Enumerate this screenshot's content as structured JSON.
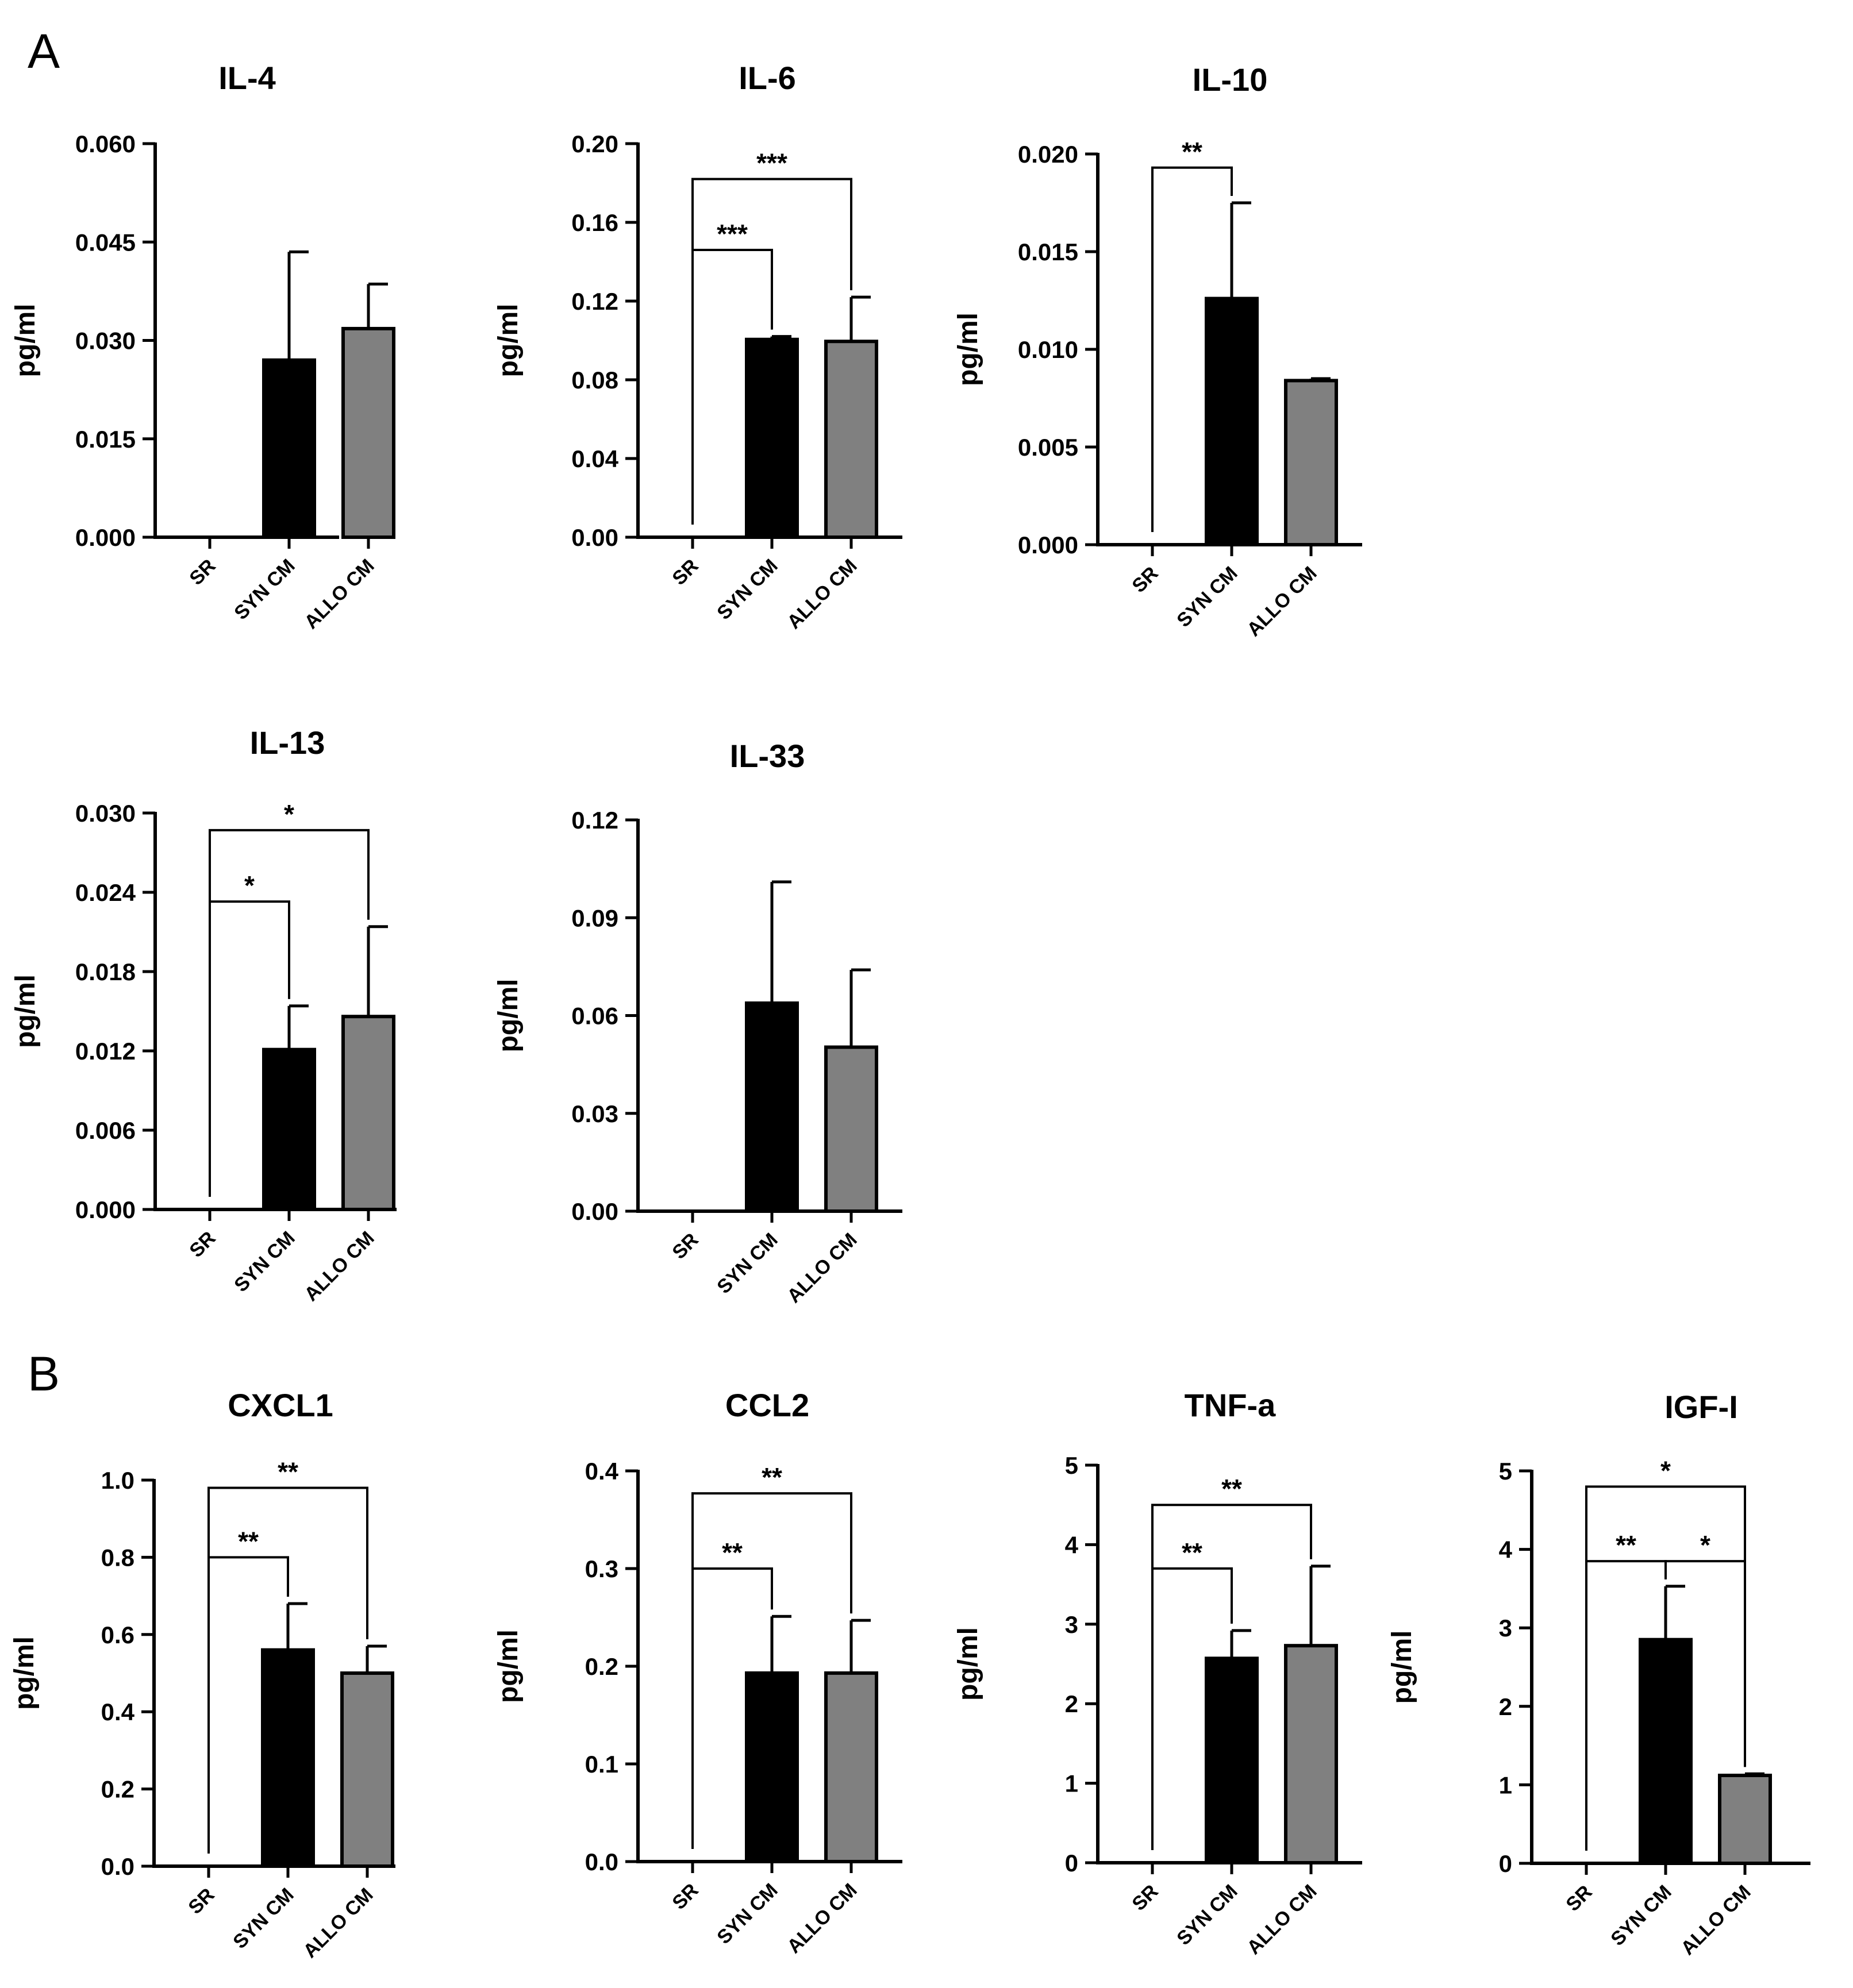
{
  "panels": [
    {
      "label": "A"
    },
    {
      "label": "B"
    }
  ],
  "colors": {
    "syn": "#000000",
    "allo": "#808080",
    "axis": "#000000"
  },
  "chart_data": [
    {
      "type": "bar",
      "title": "IL-4",
      "ylabel": "pg/ml",
      "categories": [
        "SR",
        "SYN CM",
        "ALLO CM"
      ],
      "values": [
        0,
        0.027,
        0.0318
      ],
      "errors": [
        0,
        0.0165,
        0.0068
      ],
      "ylim": [
        0,
        0.06
      ],
      "yticks": [
        "0.000",
        "0.015",
        "0.030",
        "0.045",
        "0.060"
      ],
      "significance": []
    },
    {
      "type": "bar",
      "title": "IL-6",
      "ylabel": "pg/ml",
      "categories": [
        "SR",
        "SYN CM",
        "ALLO CM"
      ],
      "values": [
        0,
        0.1005,
        0.0995
      ],
      "errors": [
        0,
        0.0015,
        0.0225
      ],
      "ylim": [
        0,
        0.2
      ],
      "yticks": [
        "0.00",
        "0.04",
        "0.08",
        "0.12",
        "0.16",
        "0.20"
      ],
      "significance": [
        {
          "from": 0,
          "to": 1,
          "label": "***",
          "y": 0.146
        },
        {
          "from": 0,
          "to": 2,
          "label": "***",
          "y": 0.182
        }
      ]
    },
    {
      "type": "bar",
      "title": "IL-10",
      "ylabel": "pg/ml",
      "categories": [
        "SR",
        "SYN CM",
        "ALLO CM"
      ],
      "values": [
        0,
        0.0126,
        0.0084
      ],
      "errors": [
        0,
        0.0049,
        0.0001
      ],
      "ylim": [
        0,
        0.02
      ],
      "yticks": [
        "0.000",
        "0.005",
        "0.010",
        "0.015",
        "0.020"
      ],
      "significance": [
        {
          "from": 0,
          "to": 1,
          "label": "**",
          "y": 0.0193
        }
      ]
    },
    {
      "type": "bar",
      "title": "IL-13",
      "ylabel": "pg/ml",
      "categories": [
        "SR",
        "SYN CM",
        "ALLO CM"
      ],
      "values": [
        0,
        0.0121,
        0.0146
      ],
      "errors": [
        0,
        0.0033,
        0.0068
      ],
      "ylim": [
        0,
        0.03
      ],
      "yticks": [
        "0.000",
        "0.006",
        "0.012",
        "0.018",
        "0.024",
        "0.030"
      ],
      "significance": [
        {
          "from": 0,
          "to": 1,
          "label": "*",
          "y": 0.0233
        },
        {
          "from": 0,
          "to": 2,
          "label": "*",
          "y": 0.0287
        }
      ]
    },
    {
      "type": "bar",
      "title": "IL-33",
      "ylabel": "pg/ml",
      "categories": [
        "SR",
        "SYN CM",
        "ALLO CM"
      ],
      "values": [
        0,
        0.0638,
        0.0503
      ],
      "errors": [
        0,
        0.0372,
        0.0237
      ],
      "ylim": [
        0,
        0.12
      ],
      "yticks": [
        "0.00",
        "0.03",
        "0.06",
        "0.09",
        "0.12"
      ],
      "significance": []
    },
    {
      "type": "bar",
      "title": "CXCL1",
      "ylabel": "pg/ml",
      "categories": [
        "SR",
        "SYN CM",
        "ALLO CM"
      ],
      "values": [
        0,
        0.56,
        0.5
      ],
      "errors": [
        0,
        0.12,
        0.07
      ],
      "ylim": [
        0,
        1.0
      ],
      "yticks": [
        "0.0",
        "0.2",
        "0.4",
        "0.6",
        "0.8",
        "1.0"
      ],
      "significance": [
        {
          "from": 0,
          "to": 1,
          "label": "**",
          "y": 0.8
        },
        {
          "from": 0,
          "to": 2,
          "label": "**",
          "y": 0.98
        }
      ]
    },
    {
      "type": "bar",
      "title": "CCL2",
      "ylabel": "pg/ml",
      "categories": [
        "SR",
        "SYN CM",
        "ALLO CM"
      ],
      "values": [
        0,
        0.193,
        0.193
      ],
      "errors": [
        0,
        0.058,
        0.054
      ],
      "ylim": [
        0,
        0.4
      ],
      "yticks": [
        "0.0",
        "0.1",
        "0.2",
        "0.3",
        "0.4"
      ],
      "significance": [
        {
          "from": 0,
          "to": 1,
          "label": "**",
          "y": 0.3
        },
        {
          "from": 0,
          "to": 2,
          "label": "**",
          "y": 0.377
        }
      ]
    },
    {
      "type": "bar",
      "title": "TNF-a",
      "ylabel": "pg/ml",
      "categories": [
        "SR",
        "SYN CM",
        "ALLO CM"
      ],
      "values": [
        0,
        2.57,
        2.73
      ],
      "errors": [
        0,
        0.35,
        1.0
      ],
      "ylim": [
        0,
        5
      ],
      "yticks": [
        "0",
        "1",
        "2",
        "3",
        "4",
        "5"
      ],
      "significance": [
        {
          "from": 0,
          "to": 1,
          "label": "**",
          "y": 3.7
        },
        {
          "from": 0,
          "to": 2,
          "label": "**",
          "y": 4.5
        }
      ]
    },
    {
      "type": "bar",
      "title": "IGF-I",
      "ylabel": "pg/ml",
      "categories": [
        "SR",
        "SYN CM",
        "ALLO CM"
      ],
      "values": [
        0,
        2.85,
        1.12
      ],
      "errors": [
        0,
        0.68,
        0.02
      ],
      "ylim": [
        0,
        5
      ],
      "yticks": [
        "0",
        "1",
        "2",
        "3",
        "4",
        "5"
      ],
      "significance": [
        {
          "from": 0,
          "to": 1,
          "label": "**",
          "y": 3.85
        },
        {
          "from": 1,
          "to": 2,
          "label": "*",
          "y": 3.85
        },
        {
          "from": 0,
          "to": 2,
          "label": "*",
          "y": 4.8
        }
      ]
    }
  ]
}
